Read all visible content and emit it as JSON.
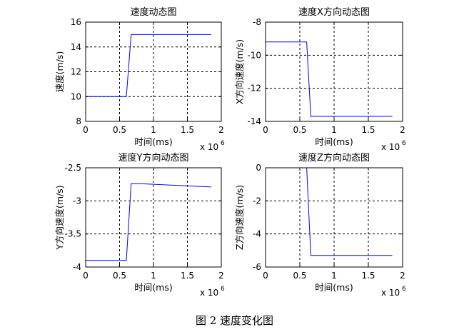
{
  "caption": "图 2  速度变化图",
  "chart_data": [
    {
      "type": "line",
      "title": "速度动态图",
      "xlabel": "时间(ms)",
      "ylabel": "速度(m/s)",
      "x_multiplier": "x 10",
      "x_exponent": "6",
      "xlim": [
        0,
        2
      ],
      "ylim": [
        8,
        16
      ],
      "xticks": [
        0,
        0.5,
        1,
        1.5,
        2
      ],
      "yticks": [
        8,
        10,
        12,
        14,
        16
      ],
      "xtick_labels": [
        "0",
        "0.5",
        "1",
        "1.5",
        "2"
      ],
      "ytick_labels": [
        "8",
        "10",
        "12",
        "14",
        "16"
      ],
      "grid": true,
      "line_color": "#0000ff",
      "series": [
        {
          "x": [
            0,
            0.6,
            0.67,
            1.85
          ],
          "y": [
            10,
            10,
            15,
            15
          ]
        }
      ]
    },
    {
      "type": "line",
      "title": "速度X方向动态图",
      "xlabel": "时间(ms)",
      "ylabel": "X方向速度(m/s)",
      "x_multiplier": "x 10",
      "x_exponent": "6",
      "xlim": [
        0,
        2
      ],
      "ylim": [
        -14,
        -8
      ],
      "xticks": [
        0,
        0.5,
        1,
        1.5,
        2
      ],
      "yticks": [
        -14,
        -12,
        -10,
        -8
      ],
      "xtick_labels": [
        "0",
        "0.5",
        "1",
        "1.5",
        "2"
      ],
      "ytick_labels": [
        "-14",
        "-12",
        "-10",
        "-8"
      ],
      "grid": true,
      "line_color": "#0000ff",
      "series": [
        {
          "x": [
            0,
            0.6,
            0.66,
            1.85
          ],
          "y": [
            -9.2,
            -9.2,
            -13.7,
            -13.7
          ]
        }
      ]
    },
    {
      "type": "line",
      "title": "速度Y方向动态图",
      "xlabel": "时间(ms)",
      "ylabel": "Y方向速度(m/s)",
      "x_multiplier": "x 10",
      "x_exponent": "6",
      "xlim": [
        0,
        2
      ],
      "ylim": [
        -4,
        -2.5
      ],
      "xticks": [
        0,
        0.5,
        1,
        1.5,
        2
      ],
      "yticks": [
        -4,
        -3.5,
        -3,
        -2.5
      ],
      "xtick_labels": [
        "0",
        "0.5",
        "1",
        "1.5",
        "2"
      ],
      "ytick_labels": [
        "-4",
        "-3.5",
        "-3",
        "-2.5"
      ],
      "grid": true,
      "line_color": "#0000ff",
      "series": [
        {
          "x": [
            0,
            0.6,
            0.67,
            0.8,
            1.85
          ],
          "y": [
            -3.9,
            -3.9,
            -2.74,
            -2.74,
            -2.79
          ]
        }
      ]
    },
    {
      "type": "line",
      "title": "速度Z方向动态图",
      "xlabel": "时间(ms)",
      "ylabel": "Z方向速度(m/s)",
      "x_multiplier": "x 10",
      "x_exponent": "6",
      "xlim": [
        0,
        2
      ],
      "ylim": [
        -6,
        0
      ],
      "xticks": [
        0,
        0.5,
        1,
        1.5,
        2
      ],
      "yticks": [
        -6,
        -4,
        -2,
        0
      ],
      "xtick_labels": [
        "0",
        "0.5",
        "1",
        "1.5",
        "2"
      ],
      "ytick_labels": [
        "-6",
        "-4",
        "-2",
        "0"
      ],
      "grid": true,
      "line_color": "#0000ff",
      "series": [
        {
          "x": [
            0,
            0.6,
            0.66,
            1.85
          ],
          "y": [
            0,
            0,
            -5.3,
            -5.3
          ]
        }
      ]
    }
  ]
}
